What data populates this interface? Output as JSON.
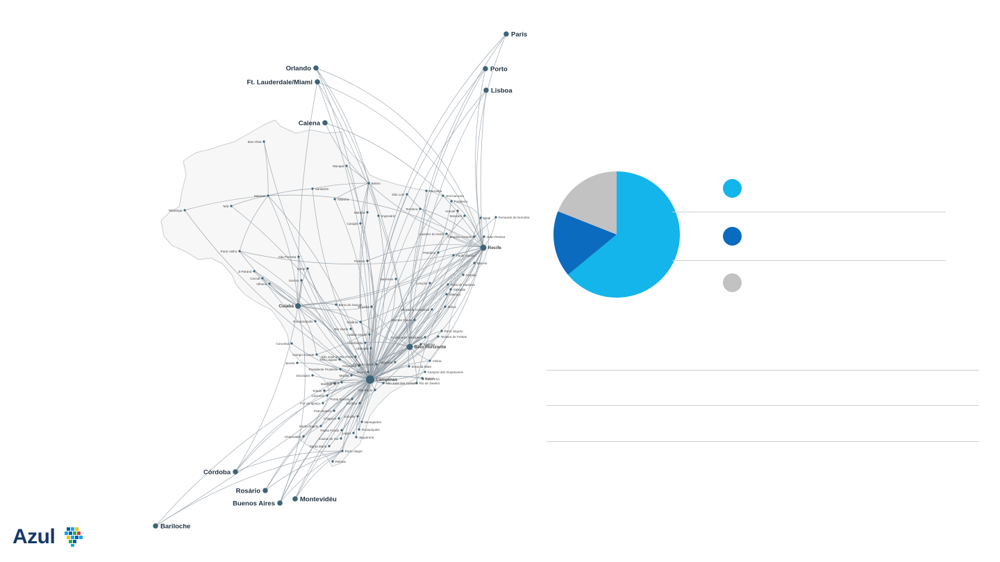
{
  "logo": {
    "text": "Azul",
    "colors": [
      "#0a5bb5",
      "#11a6e3",
      "#f4c20d",
      "#2eaa4a",
      "#e23a2b"
    ]
  },
  "colors": {
    "route": "#8f9aa3",
    "node": "#3d6478",
    "country_fill": "#f7f7f7",
    "country_border": "#c7cdd2"
  },
  "map": {
    "hubs": [
      "Campinas",
      "Recife",
      "Belo Horizonte",
      "Cuiabá"
    ],
    "international": [
      {
        "name": "Paris"
      },
      {
        "name": "Porto"
      },
      {
        "name": "Lisboa"
      },
      {
        "name": "Orlando"
      },
      {
        "name": "Ft. Lauderdale/Miami"
      },
      {
        "name": "Caiena"
      },
      {
        "name": "Córdoba"
      },
      {
        "name": "Rosário"
      },
      {
        "name": "Buenos Aires"
      },
      {
        "name": "Montevidéu"
      },
      {
        "name": "Bariloche"
      }
    ],
    "cities": [
      "Boa Vista",
      "Macapá",
      "Belém",
      "Manaus",
      "Santarém",
      "Tefé",
      "Tabatinga",
      "Altamira",
      "São Luís",
      "Parnaíba",
      "Jericoacoara",
      "Fortaleza",
      "Marabá",
      "Imperatriz",
      "Teresina",
      "Aracati",
      "Mossoró",
      "Natal",
      "Fernando de Noronha",
      "Carajás",
      "Juazeiro do Norte",
      "Campina Grande",
      "João Pessoa",
      "Porto Velho",
      "Alta Floresta",
      "Recife",
      "Petrolina",
      "Paulo Afonso",
      "Maceió",
      "Palmas",
      "Sinop",
      "Ji-Paraná",
      "Cacoal",
      "Vilhena",
      "Sorriso",
      "Barreiras",
      "Aracaju",
      "Lençóis",
      "Feira de Santana",
      "Salvador",
      "Valença",
      "Barra do Garças",
      "Brasília",
      "Cuiabá",
      "Ilhéus",
      "Vitória da Conquista",
      "Rondonópolis",
      "Goiânia",
      "Montes Claros",
      "Rio Verde",
      "Caldas Novas",
      "Porto Seguro",
      "Governador Valadares",
      "Teixeira de Freitas",
      "Corumbá",
      "Uberlândia",
      "Uberaba",
      "Ipatinga",
      "Campo Grande",
      "Três Lagoas",
      "Belo Horizonte",
      "Varginha",
      "Vitória",
      "Bonito",
      "São José do Rio Preto",
      "Araçatuba",
      "Presidente Prudente",
      "Ribeirão Preto",
      "Zona da Mata",
      "Campos dos Goytacazes",
      "Dourados",
      "Marília",
      "Bauru",
      "Campinas",
      "São José dos Campos",
      "Macaé",
      "Rio de Janeiro",
      "Cabo Frio",
      "Maringá",
      "Londrina",
      "São Paulo",
      "Toledo",
      "Cascavel",
      "Ponta Grossa",
      "Foz do Iguaçu",
      "Curitiba",
      "Pato Branco",
      "Joinville",
      "Chapecó",
      "Navegantes",
      "Santo Ângelo",
      "Passo Fundo",
      "Florianópolis",
      "Lages",
      "Jaguaruna",
      "Uruguaiana",
      "Caxias do Sul",
      "Santa Maria",
      "Porto Alegre",
      "Pelotas"
    ]
  },
  "pie": {
    "slices": [
      {
        "value": 64,
        "color": "#13b5ea"
      },
      {
        "value": 17,
        "color": "#0a6bbf"
      },
      {
        "value": 19,
        "color": "#c2c2c2"
      }
    ]
  },
  "legend": [
    {
      "color": "#13b5ea",
      "label": ""
    },
    {
      "color": "#0a6bbf",
      "label": ""
    },
    {
      "color": "#c2c2c2",
      "label": ""
    }
  ]
}
